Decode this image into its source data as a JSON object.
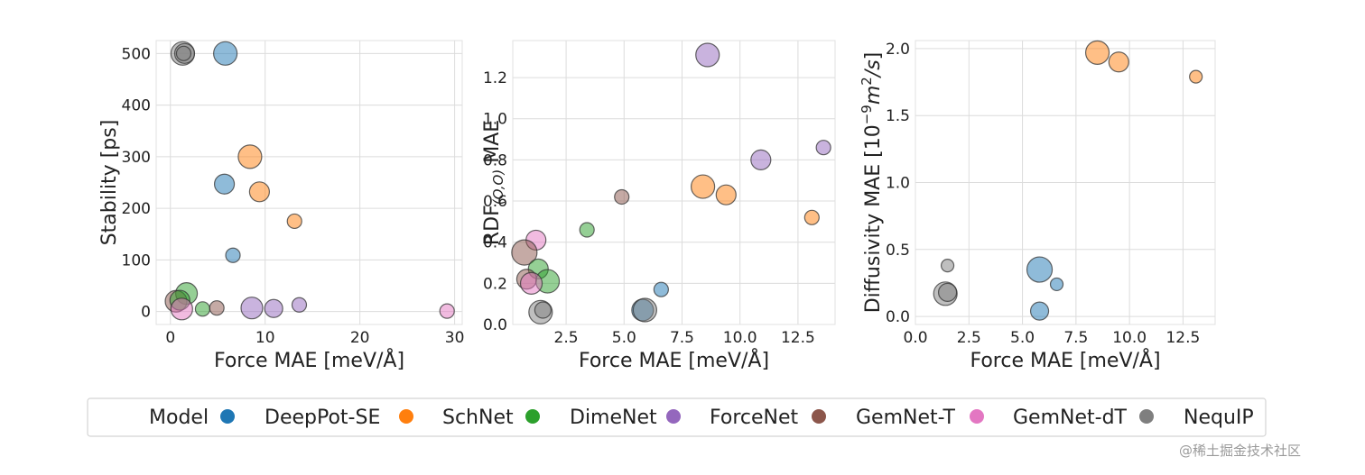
{
  "chart_data": [
    {
      "type": "scatter",
      "xlabel": "Force MAE [meV/Å]",
      "ylabel": "Stability [ps]",
      "xlim": [
        -1.5,
        30.8
      ],
      "ylim": [
        -25,
        525
      ],
      "xticks": [
        0,
        10,
        20,
        30
      ],
      "xtick_labels": [
        "0",
        "10",
        "20",
        "30"
      ],
      "yticks": [
        0,
        100,
        200,
        300,
        400,
        500
      ],
      "ytick_labels": [
        "0",
        "100",
        "200",
        "300",
        "400",
        "500"
      ],
      "grid": true,
      "points": [
        {
          "model": "NequIP",
          "x": 1.3,
          "y": 500,
          "size": 13
        },
        {
          "model": "NequIP",
          "x": 1.5,
          "y": 500,
          "size": 11
        },
        {
          "model": "NequIP",
          "x": 1.4,
          "y": 500,
          "size": 8
        },
        {
          "model": "DeepPot-SE",
          "x": 5.8,
          "y": 500,
          "size": 13
        },
        {
          "model": "SchNet",
          "x": 8.4,
          "y": 300,
          "size": 13
        },
        {
          "model": "DeepPot-SE",
          "x": 5.7,
          "y": 247,
          "size": 11
        },
        {
          "model": "SchNet",
          "x": 9.4,
          "y": 232,
          "size": 11
        },
        {
          "model": "SchNet",
          "x": 13.1,
          "y": 175,
          "size": 8
        },
        {
          "model": "DeepPot-SE",
          "x": 6.6,
          "y": 109,
          "size": 8
        },
        {
          "model": "DimeNet",
          "x": 1.7,
          "y": 35,
          "size": 12
        },
        {
          "model": "GemNet-T",
          "x": 0.6,
          "y": 20,
          "size": 12
        },
        {
          "model": "DimeNet",
          "x": 1.0,
          "y": 22,
          "size": 11
        },
        {
          "model": "GemNet-dT",
          "x": 1.2,
          "y": 5,
          "size": 12
        },
        {
          "model": "DimeNet",
          "x": 3.4,
          "y": 5,
          "size": 8
        },
        {
          "model": "GemNet-T",
          "x": 4.9,
          "y": 7,
          "size": 8
        },
        {
          "model": "ForceNet",
          "x": 8.6,
          "y": 7,
          "size": 12
        },
        {
          "model": "ForceNet",
          "x": 10.9,
          "y": 6,
          "size": 10
        },
        {
          "model": "ForceNet",
          "x": 13.6,
          "y": 13,
          "size": 8
        },
        {
          "model": "GemNet-dT",
          "x": 29.2,
          "y": 1,
          "size": 8
        }
      ]
    },
    {
      "type": "scatter",
      "xlabel": "Force MAE [meV/Å]",
      "ylabel": "RDF(O,O) MAE",
      "xlim": [
        0.2,
        14.1
      ],
      "ylim": [
        0.0,
        1.38
      ],
      "xticks": [
        2.5,
        5.0,
        7.5,
        10.0,
        12.5
      ],
      "xtick_labels": [
        "2.5",
        "5.0",
        "7.5",
        "10.0",
        "12.5"
      ],
      "yticks": [
        0.0,
        0.2,
        0.4,
        0.6,
        0.8,
        1.0,
        1.2
      ],
      "ytick_labels": [
        "0.0",
        "0.2",
        "0.4",
        "0.6",
        "0.8",
        "1.0",
        "1.2"
      ],
      "grid": true,
      "points": [
        {
          "model": "ForceNet",
          "x": 8.6,
          "y": 1.31,
          "size": 13
        },
        {
          "model": "ForceNet",
          "x": 13.6,
          "y": 0.86,
          "size": 8
        },
        {
          "model": "ForceNet",
          "x": 10.9,
          "y": 0.8,
          "size": 11
        },
        {
          "model": "SchNet",
          "x": 8.4,
          "y": 0.67,
          "size": 13
        },
        {
          "model": "SchNet",
          "x": 9.4,
          "y": 0.63,
          "size": 11
        },
        {
          "model": "GemNet-T",
          "x": 4.9,
          "y": 0.62,
          "size": 8
        },
        {
          "model": "SchNet",
          "x": 13.1,
          "y": 0.52,
          "size": 8
        },
        {
          "model": "DimeNet",
          "x": 3.4,
          "y": 0.46,
          "size": 8
        },
        {
          "model": "GemNet-dT",
          "x": 1.2,
          "y": 0.41,
          "size": 11
        },
        {
          "model": "GemNet-T",
          "x": 0.7,
          "y": 0.35,
          "size": 14
        },
        {
          "model": "DimeNet",
          "x": 1.3,
          "y": 0.27,
          "size": 11
        },
        {
          "model": "GemNet-T",
          "x": 0.8,
          "y": 0.22,
          "size": 11
        },
        {
          "model": "DimeNet",
          "x": 1.7,
          "y": 0.21,
          "size": 13
        },
        {
          "model": "GemNet-dT",
          "x": 1.0,
          "y": 0.2,
          "size": 12
        },
        {
          "model": "DeepPot-SE",
          "x": 6.6,
          "y": 0.17,
          "size": 8
        },
        {
          "model": "DeepPot-SE",
          "x": 5.8,
          "y": 0.07,
          "size": 12
        },
        {
          "model": "NequIP",
          "x": 5.9,
          "y": 0.07,
          "size": 13
        },
        {
          "model": "NequIP",
          "x": 1.4,
          "y": 0.06,
          "size": 13
        },
        {
          "model": "NequIP",
          "x": 1.5,
          "y": 0.07,
          "size": 9
        }
      ]
    },
    {
      "type": "scatter",
      "xlabel": "Force MAE [meV/Å]",
      "ylabel": "Diffusivity MAE [10^-9 m^2/s]",
      "xlim": [
        0.0,
        14.0
      ],
      "ylim": [
        -0.06,
        2.06
      ],
      "xticks": [
        0.0,
        2.5,
        5.0,
        7.5,
        10.0,
        12.5
      ],
      "xtick_labels": [
        "0.0",
        "2.5",
        "5.0",
        "7.5",
        "10.0",
        "12.5"
      ],
      "yticks": [
        0.0,
        0.5,
        1.0,
        1.5,
        2.0
      ],
      "ytick_labels": [
        "0.0",
        "0.5",
        "1.0",
        "1.5",
        "2.0"
      ],
      "grid": true,
      "points": [
        {
          "model": "SchNet",
          "x": 8.5,
          "y": 1.97,
          "size": 13
        },
        {
          "model": "SchNet",
          "x": 9.5,
          "y": 1.9,
          "size": 11
        },
        {
          "model": "SchNet",
          "x": 13.1,
          "y": 1.79,
          "size": 7
        },
        {
          "model": "NequIP",
          "x": 1.5,
          "y": 0.38,
          "size": 7
        },
        {
          "model": "DeepPot-SE",
          "x": 5.8,
          "y": 0.35,
          "size": 14
        },
        {
          "model": "DeepPot-SE",
          "x": 6.6,
          "y": 0.24,
          "size": 7
        },
        {
          "model": "NequIP",
          "x": 1.4,
          "y": 0.17,
          "size": 13
        },
        {
          "model": "NequIP",
          "x": 1.5,
          "y": 0.18,
          "size": 10
        },
        {
          "model": "DeepPot-SE",
          "x": 5.8,
          "y": 0.04,
          "size": 10
        }
      ]
    }
  ],
  "legend": {
    "title": "Model",
    "placement": "bottom-center",
    "entries": [
      {
        "label": "DeepPot-SE",
        "color": "#1f77b4"
      },
      {
        "label": "SchNet",
        "color": "#ff7f0e"
      },
      {
        "label": "DimeNet",
        "color": "#2ca02c"
      },
      {
        "label": "ForceNet",
        "color": "#9467bd"
      },
      {
        "label": "GemNet-T",
        "color": "#8c564b"
      },
      {
        "label": "GemNet-dT",
        "color": "#e377c2"
      },
      {
        "label": "NequIP",
        "color": "#7f7f7f"
      }
    ]
  },
  "watermark": "@稀土掘金技术社区"
}
